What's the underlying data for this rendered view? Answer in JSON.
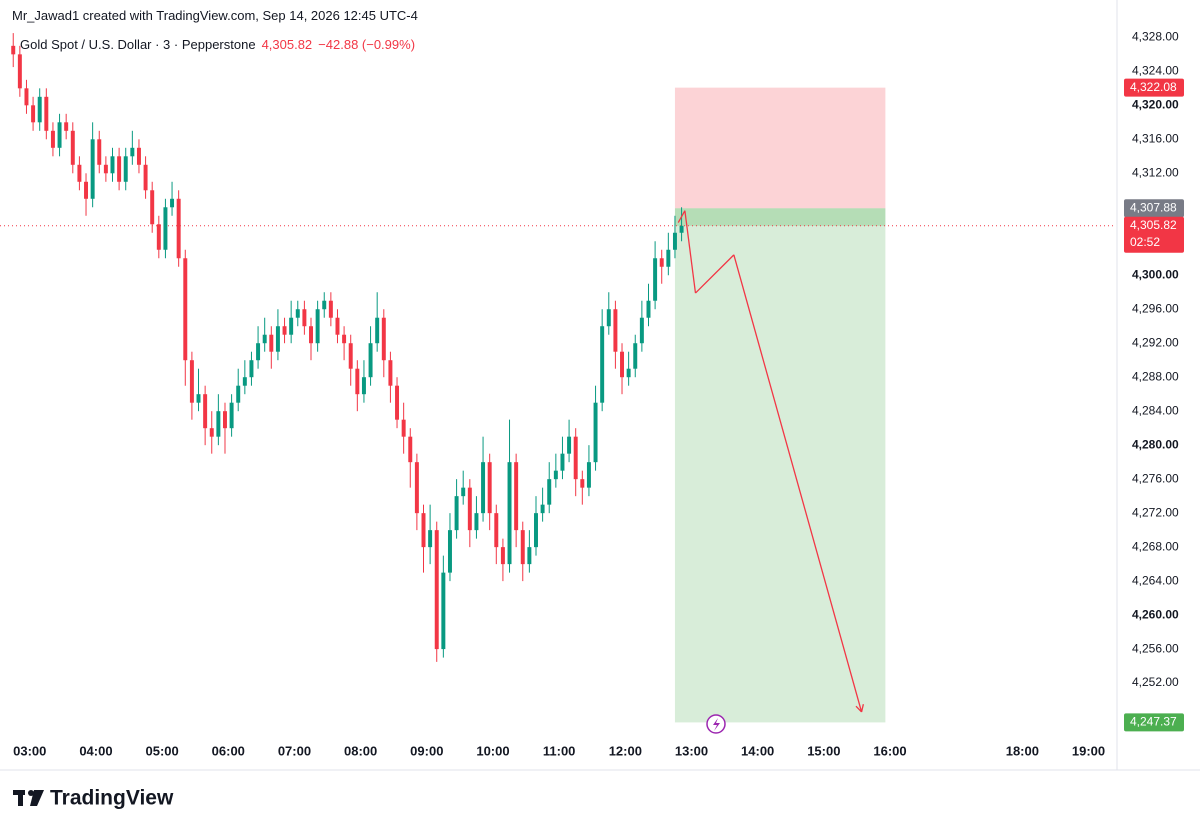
{
  "chart_data": {
    "type": "candlestick",
    "attribution": "Mr_Jawad1 created with TradingView.com, Sep 14, 2026 12:45 UTC-4",
    "title": "Gold Spot / U.S. Dollar · 3 · Pepperstone",
    "change_label": "−42.88 (−0.99%)",
    "up_color": "#089981",
    "down_color": "#f23645",
    "x": [
      2.75,
      2.85,
      2.95,
      3.05,
      3.15,
      3.25,
      3.35,
      3.45,
      3.55,
      3.65,
      3.75,
      3.85,
      3.95,
      4.05,
      4.15,
      4.25,
      4.35,
      4.45,
      4.55,
      4.65,
      4.75,
      4.85,
      4.95,
      5.05,
      5.15,
      5.25,
      5.35,
      5.45,
      5.55,
      5.65,
      5.75,
      5.85,
      5.95,
      6.05,
      6.15,
      6.25,
      6.35,
      6.45,
      6.55,
      6.65,
      6.75,
      6.85,
      6.95,
      7.05,
      7.15,
      7.25,
      7.35,
      7.45,
      7.55,
      7.65,
      7.75,
      7.85,
      7.95,
      8.05,
      8.15,
      8.25,
      8.35,
      8.45,
      8.55,
      8.65,
      8.75,
      8.85,
      8.95,
      9.05,
      9.15,
      9.25,
      9.35,
      9.45,
      9.55,
      9.65,
      9.75,
      9.85,
      9.95,
      10.05,
      10.15,
      10.25,
      10.35,
      10.45,
      10.55,
      10.65,
      10.75,
      10.85,
      10.95,
      11.05,
      11.15,
      11.25,
      11.35,
      11.45,
      11.55,
      11.65,
      11.75,
      11.85,
      11.95,
      12.05,
      12.15,
      12.25,
      12.35,
      12.45,
      12.55,
      12.65,
      12.75,
      12.85
    ],
    "ohlc": [
      [
        4327,
        4328.5,
        4324.5,
        4326
      ],
      [
        4326,
        4327,
        4321,
        4322
      ],
      [
        4322,
        4323,
        4319,
        4320
      ],
      [
        4320,
        4321,
        4317,
        4318
      ],
      [
        4318,
        4322,
        4317,
        4321
      ],
      [
        4321,
        4322,
        4316,
        4317
      ],
      [
        4317,
        4318,
        4314,
        4315
      ],
      [
        4315,
        4319,
        4314,
        4318
      ],
      [
        4318,
        4319,
        4316,
        4317
      ],
      [
        4317,
        4318,
        4312,
        4313
      ],
      [
        4313,
        4314,
        4310,
        4311
      ],
      [
        4311,
        4312,
        4307,
        4309
      ],
      [
        4309,
        4318,
        4308,
        4316
      ],
      [
        4316,
        4317,
        4312,
        4313
      ],
      [
        4313,
        4314,
        4311,
        4312
      ],
      [
        4312,
        4315,
        4311,
        4314
      ],
      [
        4314,
        4315,
        4310,
        4311
      ],
      [
        4311,
        4315,
        4310,
        4314
      ],
      [
        4314,
        4317,
        4313,
        4315
      ],
      [
        4315,
        4316,
        4312,
        4313
      ],
      [
        4313,
        4314,
        4309,
        4310
      ],
      [
        4310,
        4311,
        4305,
        4306
      ],
      [
        4306,
        4307,
        4302,
        4303
      ],
      [
        4303,
        4309,
        4302,
        4308
      ],
      [
        4308,
        4311,
        4307,
        4309
      ],
      [
        4309,
        4310,
        4301,
        4302
      ],
      [
        4302,
        4303,
        4287,
        4290
      ],
      [
        4290,
        4291,
        4283,
        4285
      ],
      [
        4285,
        4289,
        4284,
        4286
      ],
      [
        4286,
        4287,
        4280,
        4282
      ],
      [
        4282,
        4284,
        4279,
        4281
      ],
      [
        4281,
        4286,
        4280,
        4284
      ],
      [
        4284,
        4285,
        4279,
        4282
      ],
      [
        4282,
        4286,
        4281,
        4285
      ],
      [
        4285,
        4289,
        4284,
        4287
      ],
      [
        4287,
        4290,
        4286,
        4288
      ],
      [
        4288,
        4291,
        4287,
        4290
      ],
      [
        4290,
        4294,
        4289,
        4292
      ],
      [
        4292,
        4295,
        4291,
        4293
      ],
      [
        4293,
        4294,
        4289,
        4291
      ],
      [
        4291,
        4296,
        4290,
        4294
      ],
      [
        4294,
        4295,
        4292,
        4293
      ],
      [
        4293,
        4297,
        4292,
        4295
      ],
      [
        4295,
        4297,
        4294,
        4296
      ],
      [
        4296,
        4297,
        4293,
        4294
      ],
      [
        4294,
        4295,
        4290,
        4292
      ],
      [
        4292,
        4297,
        4291,
        4296
      ],
      [
        4296,
        4298,
        4295,
        4297
      ],
      [
        4297,
        4298,
        4294,
        4295
      ],
      [
        4295,
        4296,
        4292,
        4293
      ],
      [
        4293,
        4294,
        4290,
        4292
      ],
      [
        4292,
        4293,
        4287,
        4289
      ],
      [
        4289,
        4290,
        4284,
        4286
      ],
      [
        4286,
        4290,
        4285,
        4288
      ],
      [
        4288,
        4294,
        4287,
        4292
      ],
      [
        4292,
        4298,
        4291,
        4295
      ],
      [
        4295,
        4296,
        4288,
        4290
      ],
      [
        4290,
        4291,
        4285,
        4287
      ],
      [
        4287,
        4288,
        4282,
        4283
      ],
      [
        4283,
        4285,
        4279,
        4281
      ],
      [
        4281,
        4282,
        4275,
        4278
      ],
      [
        4278,
        4279,
        4270,
        4272
      ],
      [
        4272,
        4273,
        4265,
        4268
      ],
      [
        4268,
        4273,
        4266,
        4270
      ],
      [
        4270,
        4271,
        4254.5,
        4256
      ],
      [
        4256,
        4267,
        4255,
        4265
      ],
      [
        4265,
        4272,
        4264,
        4270
      ],
      [
        4270,
        4276,
        4269,
        4274
      ],
      [
        4274,
        4277,
        4273,
        4275
      ],
      [
        4275,
        4276,
        4268,
        4270
      ],
      [
        4270,
        4274,
        4269,
        4272
      ],
      [
        4272,
        4281,
        4271,
        4278
      ],
      [
        4278,
        4279,
        4270,
        4272
      ],
      [
        4272,
        4273,
        4266,
        4268
      ],
      [
        4268,
        4269,
        4264,
        4266
      ],
      [
        4266,
        4283,
        4265,
        4278
      ],
      [
        4278,
        4279,
        4268,
        4270
      ],
      [
        4270,
        4271,
        4264,
        4266
      ],
      [
        4266,
        4270,
        4265,
        4268
      ],
      [
        4268,
        4274,
        4267,
        4272
      ],
      [
        4272,
        4275,
        4271,
        4273
      ],
      [
        4273,
        4278,
        4272,
        4276
      ],
      [
        4276,
        4279,
        4275,
        4277
      ],
      [
        4277,
        4281,
        4276,
        4279
      ],
      [
        4279,
        4283,
        4278,
        4281
      ],
      [
        4281,
        4282,
        4274,
        4276
      ],
      [
        4276,
        4277,
        4273,
        4275
      ],
      [
        4275,
        4280,
        4274,
        4278
      ],
      [
        4278,
        4287,
        4277,
        4285
      ],
      [
        4285,
        4296,
        4284,
        4294
      ],
      [
        4294,
        4298,
        4293,
        4296
      ],
      [
        4296,
        4297,
        4289,
        4291
      ],
      [
        4291,
        4292,
        4286,
        4288
      ],
      [
        4288,
        4291,
        4287,
        4289
      ],
      [
        4289,
        4293,
        4288,
        4292
      ],
      [
        4292,
        4297,
        4291,
        4295
      ],
      [
        4295,
        4299,
        4294,
        4297
      ],
      [
        4297,
        4304,
        4296,
        4302
      ],
      [
        4302,
        4303,
        4299,
        4301
      ],
      [
        4301,
        4305,
        4300,
        4303
      ],
      [
        4303,
        4307,
        4302,
        4305
      ],
      [
        4305,
        4308,
        4304,
        4305.82
      ]
    ],
    "xlim": [
      2.55,
      19.4
    ],
    "xticks": [
      {
        "value": 3,
        "label": "03:00"
      },
      {
        "value": 4,
        "label": "04:00"
      },
      {
        "value": 5,
        "label": "05:00"
      },
      {
        "value": 6,
        "label": "06:00"
      },
      {
        "value": 7,
        "label": "07:00"
      },
      {
        "value": 8,
        "label": "08:00"
      },
      {
        "value": 9,
        "label": "09:00"
      },
      {
        "value": 10,
        "label": "10:00"
      },
      {
        "value": 11,
        "label": "11:00"
      },
      {
        "value": 12,
        "label": "12:00"
      },
      {
        "value": 13,
        "label": "13:00"
      },
      {
        "value": 14,
        "label": "14:00"
      },
      {
        "value": 15,
        "label": "15:00"
      },
      {
        "value": 16,
        "label": "16:00"
      },
      {
        "value": 18,
        "label": "18:00"
      },
      {
        "value": 19,
        "label": "19:00"
      }
    ],
    "ylim": [
      4245.3,
      4329.1
    ],
    "yticks": [
      {
        "value": 4328,
        "label": "4,328.00"
      },
      {
        "value": 4324,
        "label": "4,324.00"
      },
      {
        "value": 4320,
        "label": "4,320.00"
      },
      {
        "value": 4316,
        "label": "4,316.00"
      },
      {
        "value": 4312,
        "label": "4,312.00"
      },
      {
        "value": 4300,
        "label": "4,300.00"
      },
      {
        "value": 4296,
        "label": "4,296.00"
      },
      {
        "value": 4292,
        "label": "4,292.00"
      },
      {
        "value": 4288,
        "label": "4,288.00"
      },
      {
        "value": 4284,
        "label": "4,284.00"
      },
      {
        "value": 4280,
        "label": "4,280.00"
      },
      {
        "value": 4276,
        "label": "4,276.00"
      },
      {
        "value": 4272,
        "label": "4,272.00"
      },
      {
        "value": 4268,
        "label": "4,268.00"
      },
      {
        "value": 4264,
        "label": "4,264.00"
      },
      {
        "value": 4260,
        "label": "4,260.00"
      },
      {
        "value": 4256,
        "label": "4,256.00"
      },
      {
        "value": 4252,
        "label": "4,252.00"
      }
    ],
    "last_price": {
      "value": 4305.82,
      "label": "4,305.82",
      "countdown": "02:52"
    },
    "position": {
      "start": 12.75,
      "end": 15.93,
      "stop": {
        "value": 4322.08,
        "label": "4,322.08"
      },
      "entry": {
        "value": 4307.88,
        "label": "4,307.88"
      },
      "target": {
        "value": 4247.37,
        "label": "4,247.37"
      }
    },
    "drawing": {
      "color": "#f23645",
      "points": [
        [
          12.8,
          4306.2
        ],
        [
          12.9,
          4307.6
        ],
        [
          13.06,
          4297.9
        ],
        [
          13.64,
          4302.4
        ],
        [
          15.57,
          4248.6
        ]
      ]
    },
    "brand": "TradingView"
  }
}
